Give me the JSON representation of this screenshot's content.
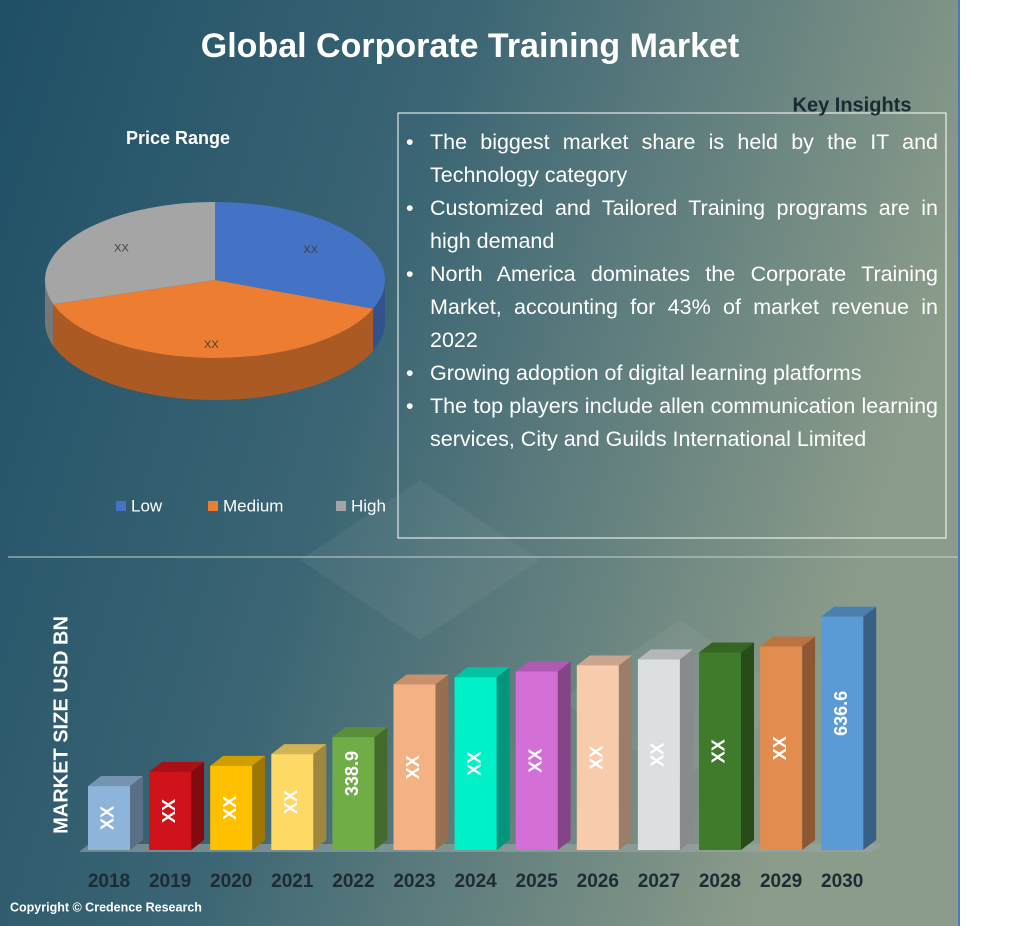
{
  "title": "Global Corporate Training Market",
  "chart_data": [
    {
      "type": "pie",
      "title": "Price Range",
      "categories": [
        "Low",
        "Medium",
        "High"
      ],
      "values": [
        31,
        39,
        30
      ],
      "value_labels": [
        "XX",
        "XX",
        "XX"
      ],
      "colors": [
        "#4472c4",
        "#ed7d31",
        "#a5a5a5"
      ],
      "legend": "bottom"
    },
    {
      "type": "bar",
      "y_label": "MARKET SIZE USD BN",
      "categories": [
        "2018",
        "2019",
        "2020",
        "2021",
        "2022",
        "2023",
        "2024",
        "2025",
        "2026",
        "2027",
        "2028",
        "2029",
        "2030"
      ],
      "values": [
        218,
        253,
        268,
        297,
        338.9,
        469,
        487,
        501,
        516,
        531,
        548,
        563,
        636.6
      ],
      "value_labels": [
        "XX",
        "XX",
        "XX",
        "XX",
        null,
        "XX",
        "XX",
        "XX",
        "XX",
        "XX",
        "XX",
        "XX",
        null
      ],
      "colors": [
        "#8fb4d9",
        "#d0121b",
        "#ffc000",
        "#ffd966",
        "#70ad47",
        "#f4b183",
        "#00f0c8",
        "#d46fd8",
        "#f8cbad",
        "#dcdfe2",
        "#3f7b2a",
        "#e38c4f",
        "#5b9bd5"
      ],
      "ylim": [
        60,
        700
      ]
    }
  ],
  "key_insights": {
    "title": "Key Insights",
    "items": [
      "The biggest market share is held by the IT and Technology category",
      "Customized and Tailored Training programs are in high demand",
      "North America dominates the Corporate Training Market, accounting for 43% of market revenue in 2022",
      "Growing adoption of digital learning platforms",
      "The top players include allen communication learning services, City and Guilds International Limited"
    ]
  },
  "copyright": "Copyright © Credence Research"
}
